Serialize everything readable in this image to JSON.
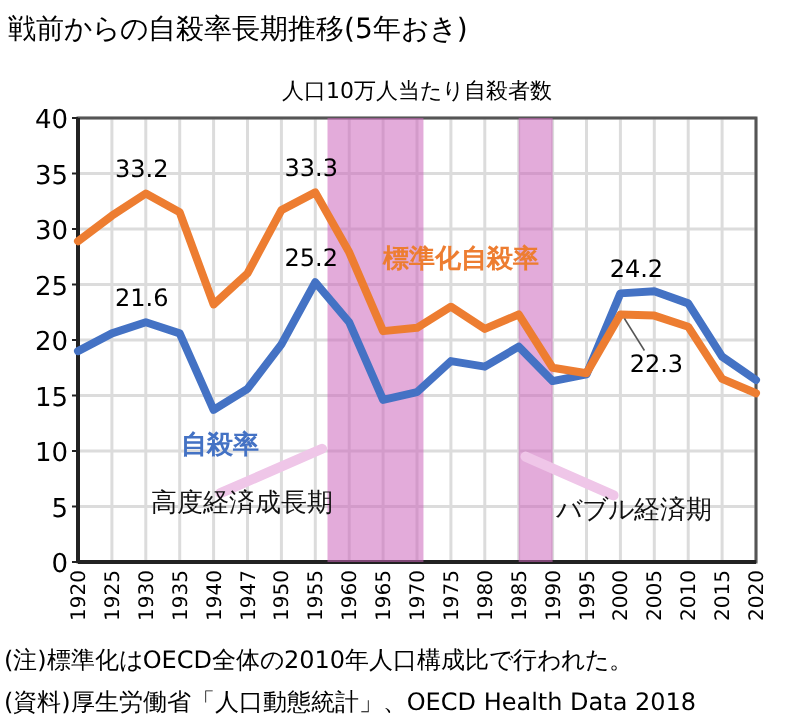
{
  "chart_data": {
    "type": "line",
    "title": "戦前からの自殺率長期推移(5年おき)",
    "ylabel": "人口10万人当たり自殺者数",
    "categories": [
      "1920",
      "1925",
      "1930",
      "1935",
      "1940",
      "1947",
      "1950",
      "1955",
      "1960",
      "1965",
      "1970",
      "1975",
      "1980",
      "1985",
      "1990",
      "1995",
      "2000",
      "2005",
      "2010",
      "2015",
      "2020"
    ],
    "series": [
      {
        "name": "自殺率",
        "color": "#4472c4",
        "values": [
          19.0,
          20.6,
          21.6,
          20.6,
          13.7,
          15.6,
          19.6,
          25.2,
          21.6,
          14.6,
          15.3,
          18.1,
          17.6,
          19.4,
          16.3,
          16.9,
          24.2,
          24.4,
          23.3,
          18.5,
          16.4
        ],
        "value_labels": [
          null,
          null,
          "21.6",
          null,
          null,
          null,
          null,
          "25.2",
          null,
          null,
          null,
          null,
          null,
          null,
          null,
          null,
          "24.2",
          null,
          null,
          null,
          null
        ]
      },
      {
        "name": "標準化自殺率",
        "color": "#ed7d31",
        "values": [
          28.9,
          31.2,
          33.2,
          31.5,
          23.2,
          26.0,
          31.7,
          33.3,
          27.9,
          20.8,
          21.1,
          23.0,
          21.0,
          22.3,
          17.5,
          17.0,
          22.3,
          22.2,
          21.2,
          16.5,
          15.2
        ],
        "value_labels": [
          null,
          null,
          "33.2",
          null,
          null,
          null,
          null,
          "33.3",
          null,
          null,
          null,
          null,
          null,
          null,
          null,
          null,
          "22.3",
          null,
          null,
          null,
          null
        ]
      }
    ],
    "bands": [
      {
        "axis": "x",
        "from": "1985",
        "to": "1990",
        "label": "バブル経済期",
        "color": "#cc66bb"
      }
    ],
    "ylim": [
      0,
      40
    ],
    "yticks": [
      0,
      5,
      10,
      15,
      20,
      25,
      30,
      35,
      40
    ],
    "grid": true,
    "annotations": [
      "高度経済成長期",
      "(注)標準化はOECD全体の2010年人口構成比で行われた。",
      "(資料)厚生労働省「人口動態統計」、OECD Health Data 2018"
    ]
  }
}
